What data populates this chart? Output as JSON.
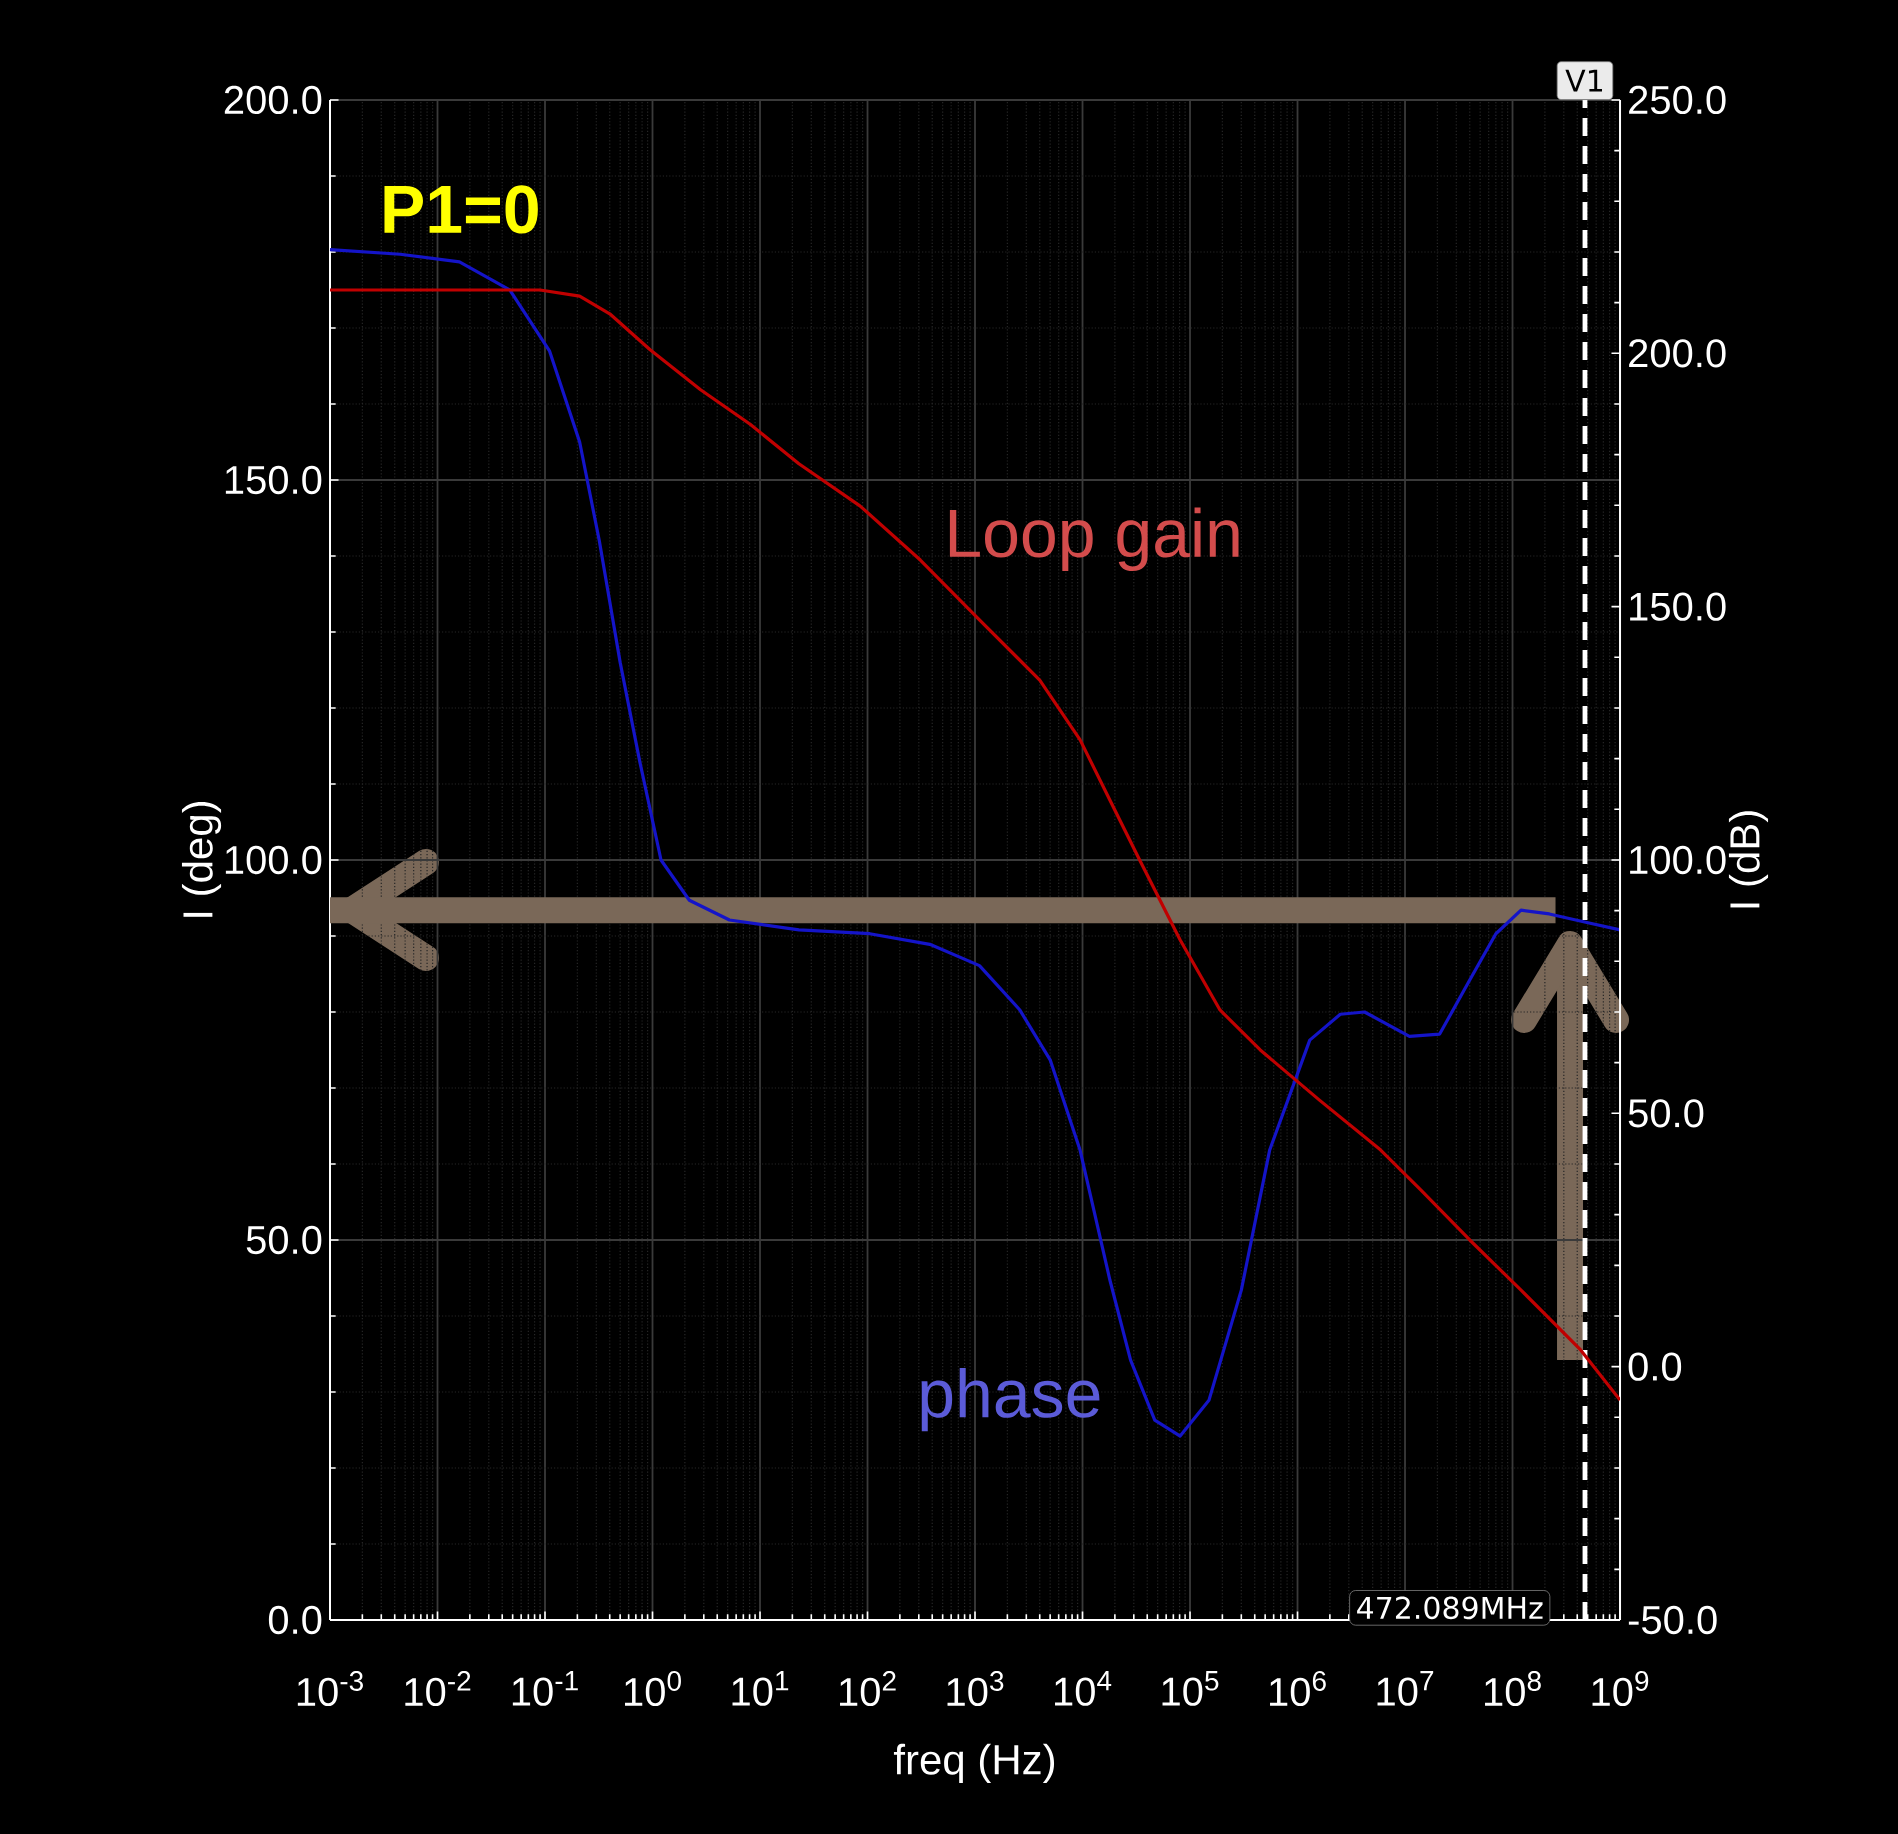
{
  "chart_data": {
    "type": "line",
    "xlabel": "freq (Hz)",
    "ylabel": "I (deg)",
    "y2label": "I (dB)",
    "log": "x",
    "grid": true,
    "marker": "none",
    "xlim": [
      0.001,
      1000000000
    ],
    "xticks": [
      {
        "value": 0.001,
        "label": "10$^{-3}$"
      },
      {
        "value": 0.01,
        "label": "10$^{-2}$"
      },
      {
        "value": 0.1,
        "label": "10$^{-1}$"
      },
      {
        "value": 1,
        "label": "10$^{0}$"
      },
      {
        "value": 10,
        "label": "10$^{1}$"
      },
      {
        "value": 100,
        "label": "10$^{2}$"
      },
      {
        "value": 1000,
        "label": "10$^{3}$"
      },
      {
        "value": 10000,
        "label": "10$^{4}$"
      },
      {
        "value": 100000,
        "label": "10$^{5}$"
      },
      {
        "value": 1000000,
        "label": "10$^{6}$"
      },
      {
        "value": 10000000,
        "label": "10$^{7}$"
      },
      {
        "value": 100000000,
        "label": "10$^{8}$"
      },
      {
        "value": 1000000000,
        "label": "10$^{9}$"
      }
    ],
    "ylim": [
      0,
      200
    ],
    "yticks": [
      {
        "value": 0,
        "label": "0.0"
      },
      {
        "value": 50,
        "label": "50.0"
      },
      {
        "value": 100,
        "label": "100.0"
      },
      {
        "value": 150,
        "label": "150.0"
      },
      {
        "value": 200,
        "label": "200.0"
      }
    ],
    "y2lim": [
      -50,
      250
    ],
    "y2ticks": [
      {
        "value": -50,
        "label": "-50.0"
      },
      {
        "value": 0,
        "label": "0.0"
      },
      {
        "value": 50,
        "label": "50.0"
      },
      {
        "value": 100,
        "label": "100.0"
      },
      {
        "value": 150,
        "label": "150.0"
      },
      {
        "value": 200,
        "label": "200.0"
      },
      {
        "value": 250,
        "label": "250.0"
      }
    ],
    "series": [
      {
        "name": "phase",
        "color": "#1414c8",
        "x": [
          0.001,
          0.0045,
          0.016,
          0.047,
          0.11,
          0.21,
          0.32,
          0.5,
          0.76,
          1.2,
          2.2,
          5.2,
          23,
          105,
          380,
          1100,
          2600,
          5000,
          9500,
          18000,
          28000,
          47000,
          81000,
          150000,
          300000,
          550000,
          1300000,
          2500000,
          4200000,
          11000000,
          21000000,
          40000000,
          70000000,
          120000000,
          220000000,
          480000000,
          1000000000
        ],
        "values": [
          180.3,
          179.7,
          178.7,
          175,
          167,
          155,
          142,
          126,
          113,
          100,
          94.7,
          92.1,
          90.8,
          90.3,
          88.9,
          86.1,
          80.3,
          73.7,
          61.8,
          44.7,
          34.2,
          26.3,
          24.2,
          28.9,
          43.4,
          61.8,
          76.3,
          79.7,
          80,
          76.8,
          77.1,
          84.2,
          90.3,
          93.4,
          92.9,
          91.8,
          90.8
        ]
      },
      {
        "name": "Loop gain",
        "color": "#c00000",
        "axis": "y2",
        "x": [
          0.001,
          0.09,
          0.21,
          0.4,
          0.95,
          2.8,
          8.1,
          23,
          85,
          310,
          1100,
          4000,
          9500,
          18000,
          34000,
          81000,
          190000,
          450000,
          1600000,
          5900000,
          14000000,
          40000000,
          120000000,
          430000000,
          1000000000
        ],
        "values": [
          212.5,
          212.5,
          211.3,
          207.8,
          200.7,
          192.8,
          186,
          178.2,
          169.9,
          159.2,
          147.4,
          135.5,
          123.7,
          111.8,
          100,
          84.2,
          70.4,
          62.5,
          52.6,
          42.8,
          34.9,
          25,
          15.1,
          3.3,
          -6.6
        ]
      }
    ],
    "ref_lines": [
      {
        "axis": "x",
        "value": 472089000,
        "label": "V1",
        "color": "#ffffff",
        "line_style": "dashed"
      },
      {
        "axis": "y",
        "value": 93.4,
        "color": "#7a6858"
      }
    ],
    "annotations": [
      "P1=0",
      "472.089MHz"
    ]
  }
}
